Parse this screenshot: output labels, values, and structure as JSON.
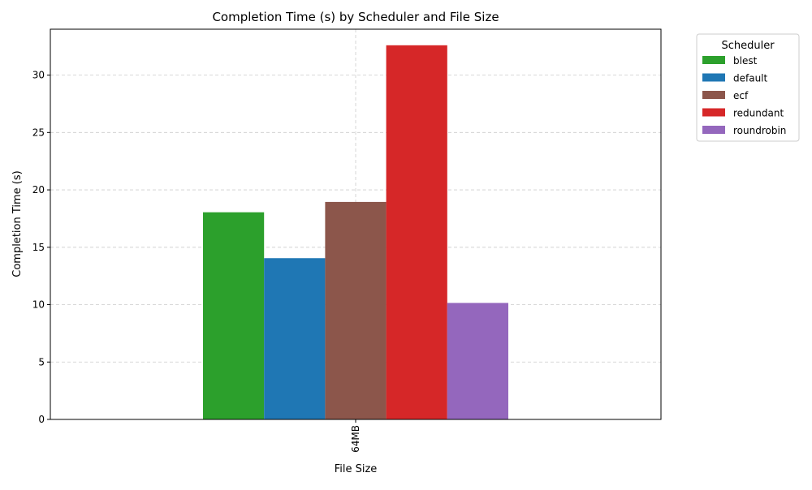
{
  "chart_data": {
    "type": "bar",
    "title": "Completion Time (s) by Scheduler and File Size",
    "xlabel": "File Size",
    "ylabel": "Completion Time (s)",
    "categories": [
      "64MB"
    ],
    "series": [
      {
        "name": "blest",
        "values": [
          18.05
        ],
        "color": "#2ca02c"
      },
      {
        "name": "default",
        "values": [
          14.05
        ],
        "color": "#1f77b4"
      },
      {
        "name": "ecf",
        "values": [
          18.95
        ],
        "color": "#8c564b"
      },
      {
        "name": "redundant",
        "values": [
          32.6
        ],
        "color": "#d62728"
      },
      {
        "name": "roundrobin",
        "values": [
          10.15
        ],
        "color": "#9467bd"
      }
    ],
    "ylim": [
      0,
      34
    ],
    "yticks": [
      0,
      5,
      10,
      15,
      20,
      25,
      30
    ],
    "grid": true,
    "legend": {
      "title": "Scheduler",
      "placement": "outside-top-right"
    }
  }
}
